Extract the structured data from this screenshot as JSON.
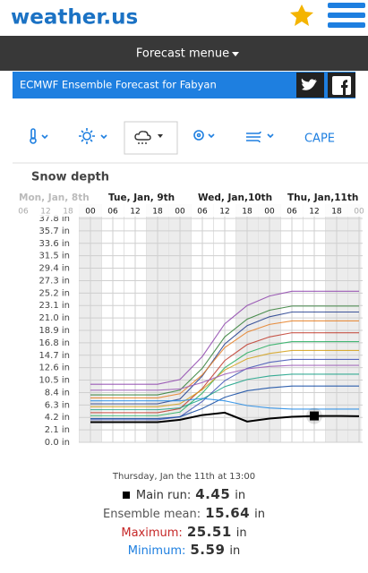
{
  "header": {
    "logo": "weather.us",
    "menu": "Forecast menue"
  },
  "banner": {
    "title": "ECMWF Ensemble Forecast for Fabyan"
  },
  "tabs": {
    "cape": "CAPE"
  },
  "chart_data": {
    "type": "line",
    "title": "Snow depth",
    "days": [
      "Mon, Jan, 8th",
      "Tue, Jan, 9th",
      "Wed, Jan,10th",
      "Thu, Jan,11th"
    ],
    "x": [
      "06",
      "12",
      "18",
      "00",
      "06",
      "12",
      "18",
      "00",
      "06",
      "12",
      "18",
      "00",
      "06",
      "12",
      "18",
      "00"
    ],
    "ylim": [
      0,
      37.8
    ],
    "yticks": [
      {
        "value": 0,
        "label": "0.0 in"
      },
      {
        "value": 2.1,
        "label": "2.1 in"
      },
      {
        "value": 4.2,
        "label": "4.2 in"
      },
      {
        "value": 6.3,
        "label": "6.3 in"
      },
      {
        "value": 8.4,
        "label": "8.4 in"
      },
      {
        "value": 10.5,
        "label": "10.5 in"
      },
      {
        "value": 12.6,
        "label": "12.6 in"
      },
      {
        "value": 14.7,
        "label": "14.7 in"
      },
      {
        "value": 16.8,
        "label": "16.8 in"
      },
      {
        "value": 18.9,
        "label": "18.9 in"
      },
      {
        "value": 21,
        "label": "21.0 in"
      },
      {
        "value": 23.1,
        "label": "23.1 in"
      },
      {
        "value": 25.2,
        "label": "25.2 in"
      },
      {
        "value": 27.3,
        "label": "27.3 in"
      },
      {
        "value": 29.4,
        "label": "29.4 in"
      },
      {
        "value": 31.5,
        "label": "31.5 in"
      },
      {
        "value": 33.6,
        "label": "33.6 in"
      },
      {
        "value": 35.7,
        "label": "35.7 in"
      },
      {
        "value": 37.8,
        "label": "37.8 in"
      }
    ],
    "grid": true,
    "series": [
      {
        "color": "#8e44ad",
        "values": [
          null,
          null,
          null,
          9.8,
          9.8,
          9.8,
          9.8,
          10.6,
          14.5,
          20.0,
          23.1,
          24.7,
          25.5,
          25.5,
          25.5,
          25.5
        ]
      },
      {
        "color": "#2e7d32",
        "values": [
          null,
          null,
          null,
          8.0,
          8.0,
          8.0,
          8.0,
          8.8,
          12.5,
          17.8,
          20.8,
          22.3,
          23.0,
          23.0,
          23.0,
          23.0
        ]
      },
      {
        "color": "#1f3b8c",
        "values": [
          null,
          null,
          null,
          6.5,
          6.5,
          6.5,
          6.5,
          7.3,
          11.2,
          16.6,
          19.7,
          21.2,
          22.0,
          22.0,
          22.0,
          22.0
        ]
      },
      {
        "color": "#e67e22",
        "values": [
          null,
          null,
          null,
          7.5,
          7.5,
          7.5,
          7.5,
          8.2,
          11.4,
          16.0,
          18.6,
          19.9,
          20.5,
          20.5,
          20.5,
          20.5
        ]
      },
      {
        "color": "#c0392b",
        "values": [
          null,
          null,
          null,
          5.0,
          5.0,
          5.0,
          5.0,
          5.7,
          9.1,
          13.8,
          16.5,
          17.8,
          18.5,
          18.5,
          18.5,
          18.5
        ]
      },
      {
        "color": "#27ae60",
        "values": [
          null,
          null,
          null,
          4.5,
          4.5,
          4.5,
          4.5,
          5.1,
          8.3,
          12.6,
          15.1,
          16.4,
          17.0,
          17.0,
          17.0,
          17.0
        ]
      },
      {
        "color": "#d4a017",
        "values": [
          null,
          null,
          null,
          6.0,
          6.0,
          6.0,
          6.0,
          6.5,
          8.9,
          12.2,
          14.1,
          15.0,
          15.5,
          15.5,
          15.5,
          15.5
        ]
      },
      {
        "color": "#3f51b5",
        "values": [
          null,
          null,
          null,
          3.8,
          3.8,
          3.8,
          3.8,
          4.3,
          6.9,
          10.4,
          12.5,
          13.5,
          14.0,
          14.0,
          14.0,
          14.0
        ]
      },
      {
        "color": "#9b59b6",
        "values": [
          null,
          null,
          null,
          8.8,
          8.8,
          8.8,
          8.8,
          9.0,
          10.1,
          11.5,
          12.4,
          12.8,
          13.0,
          13.0,
          13.0,
          13.0
        ]
      },
      {
        "color": "#16a085",
        "values": [
          null,
          null,
          null,
          5.5,
          5.5,
          5.5,
          5.5,
          5.8,
          7.3,
          9.4,
          10.6,
          11.2,
          11.5,
          11.5,
          11.5,
          11.5
        ]
      },
      {
        "color": "#0d47a1",
        "values": [
          null,
          null,
          null,
          4.0,
          4.0,
          4.0,
          4.0,
          4.3,
          5.7,
          7.6,
          8.7,
          9.2,
          9.5,
          9.5,
          9.5,
          9.5
        ]
      },
      {
        "color": "#1e88e5",
        "values": [
          null,
          null,
          null,
          7.0,
          7.0,
          7.0,
          7.0,
          7.0,
          7.4,
          7.0,
          6.2,
          5.8,
          5.6,
          5.6,
          5.6,
          5.6
        ]
      },
      {
        "color": "#000000",
        "values": [
          null,
          null,
          null,
          3.4,
          3.4,
          3.4,
          3.4,
          3.8,
          4.6,
          5.0,
          3.5,
          4.0,
          4.3,
          4.45,
          4.45,
          4.4
        ]
      }
    ],
    "marker": {
      "series": 12,
      "index": 13
    }
  },
  "tooltip": {
    "time": "Thursday, Jan the 11th at 13:00",
    "unit": "in",
    "main_label": "Main run:",
    "main_value": 4.45,
    "mean_label": "Ensemble mean:",
    "mean_value": 15.64,
    "max_label": "Maximum:",
    "max_value": 25.51,
    "min_label": "Minimum:",
    "min_value": 5.59
  }
}
